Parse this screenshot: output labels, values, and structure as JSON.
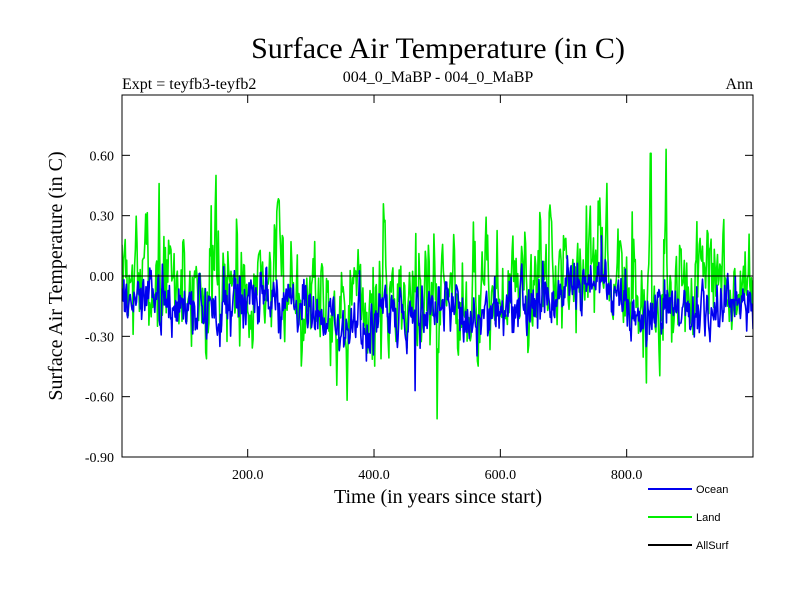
{
  "chart_data": {
    "type": "line",
    "title": "Surface Air Temperature (in C)",
    "subtitle_left": "Expt = teyfb3-teyfb2",
    "subtitle_center": "004_0_MaBP - 004_0_MaBP",
    "subtitle_right": "Ann",
    "xlabel": "Time (in years since start)",
    "ylabel": "Surface Air Temperature (in C)",
    "xlim": [
      1,
      1000
    ],
    "ylim": [
      -0.9,
      0.9
    ],
    "xticks": [
      200,
      400,
      600,
      800
    ],
    "xtick_labels": [
      "200.0",
      "400.0",
      "600.0",
      "800.0"
    ],
    "yticks": [
      -0.9,
      -0.6,
      -0.3,
      0.0,
      0.3,
      0.6
    ],
    "ytick_labels": [
      "-0.90",
      "-0.60",
      "-0.30",
      "0.00",
      "0.30",
      "0.60"
    ],
    "series": [
      {
        "name": "Land",
        "color": "#00ee00",
        "description": "Annual land-mean anomaly, high interannual variability",
        "baseline": -0.06,
        "spread": 0.2,
        "seed": 7,
        "extremes": [
          {
            "x": 150,
            "y": 0.5
          },
          {
            "x": 500,
            "y": -0.71
          },
          {
            "x": 862,
            "y": 0.63
          },
          {
            "x": 838,
            "y": 0.61
          },
          {
            "x": 60,
            "y": 0.46
          }
        ]
      },
      {
        "name": "Ocean",
        "color": "#0000ee",
        "description": "Annual ocean-mean anomaly, lower variability",
        "baseline": -0.16,
        "spread": 0.09,
        "seed": 3,
        "extremes": [
          {
            "x": 465,
            "y": -0.57
          },
          {
            "x": 760,
            "y": 0.2
          }
        ]
      },
      {
        "name": "AllSurf",
        "color": "#000000",
        "description": "Zero reference line",
        "constant": 0.0
      }
    ],
    "legend": [
      "Ocean",
      "Land",
      "AllSurf"
    ],
    "legend_colors": [
      "#0000ee",
      "#00ee00",
      "#000000"
    ]
  }
}
